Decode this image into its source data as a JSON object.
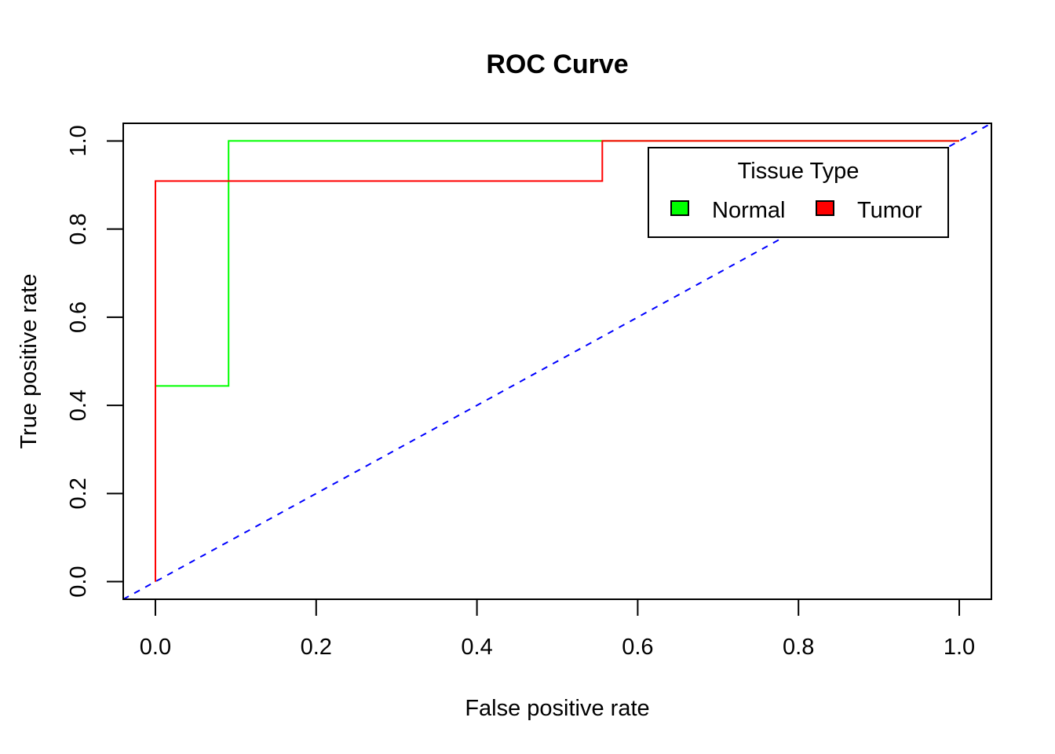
{
  "chart_data": {
    "type": "line",
    "title": "ROC Curve",
    "xlabel": "False positive rate",
    "ylabel": "True positive rate",
    "xlim": [
      -0.04,
      1.04
    ],
    "ylim": [
      -0.04,
      1.04
    ],
    "x_ticks": [
      "0.0",
      "0.2",
      "0.4",
      "0.6",
      "0.8",
      "1.0"
    ],
    "y_ticks": [
      "0.0",
      "0.2",
      "0.4",
      "0.6",
      "0.8",
      "1.0"
    ],
    "grid": false,
    "legend": {
      "title": "Tissue Type",
      "placement": "top-right",
      "entries": [
        "Normal",
        "Tumor"
      ]
    },
    "series": [
      {
        "name": "Normal",
        "color": "#00ff00",
        "step": true,
        "points": [
          [
            0,
            0
          ],
          [
            0,
            0.444
          ],
          [
            0.091,
            0.444
          ],
          [
            0.091,
            1.0
          ],
          [
            1.0,
            1.0
          ]
        ]
      },
      {
        "name": "Tumor",
        "color": "#ff0000",
        "step": true,
        "points": [
          [
            0,
            0
          ],
          [
            0,
            0.909
          ],
          [
            0.556,
            0.909
          ],
          [
            0.556,
            1.0
          ],
          [
            1.0,
            1.0
          ]
        ]
      }
    ],
    "reference_line": {
      "color": "#0000ff",
      "style": "dashed",
      "slope": 1,
      "intercept": 0
    }
  }
}
